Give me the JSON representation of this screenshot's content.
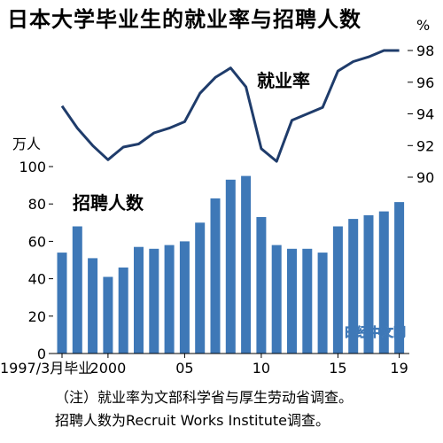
{
  "chart_data": {
    "type": "bar+line",
    "title": "日本大学毕业生的就业率与招聘人数",
    "x": [
      1997,
      1998,
      1999,
      2000,
      2001,
      2002,
      2003,
      2004,
      2005,
      2006,
      2007,
      2008,
      2009,
      2010,
      2011,
      2012,
      2013,
      2014,
      2015,
      2016,
      2017,
      2018,
      2019
    ],
    "x_tick_labels": [
      {
        "x": 1997,
        "label": "1997/3月毕业"
      },
      {
        "x": 2000,
        "label": "2000"
      },
      {
        "x": 2005,
        "label": "05"
      },
      {
        "x": 2010,
        "label": "10"
      },
      {
        "x": 2015,
        "label": "15"
      },
      {
        "x": 2019,
        "label": "19"
      }
    ],
    "series": [
      {
        "name": "招聘人数",
        "type": "bar",
        "axis": "left",
        "color": "#3e78b7",
        "values": [
          54,
          68,
          51,
          41,
          46,
          57,
          56,
          58,
          60,
          70,
          83,
          93,
          95,
          73,
          58,
          56,
          56,
          54,
          68,
          72,
          74,
          76,
          81
        ]
      },
      {
        "name": "就业率",
        "type": "line",
        "axis": "right",
        "color": "#1f3c6b",
        "values": [
          94.5,
          93.1,
          92.0,
          91.1,
          91.9,
          92.1,
          92.8,
          93.1,
          93.5,
          95.3,
          96.3,
          96.9,
          95.7,
          91.8,
          91.0,
          93.6,
          94.0,
          94.4,
          96.7,
          97.3,
          97.6,
          98.0,
          98.0
        ]
      }
    ],
    "y_left": {
      "unit": "万人",
      "ylim": [
        0,
        100
      ],
      "ticks": [
        0,
        20,
        40,
        60,
        80,
        100
      ]
    },
    "y_right": {
      "unit": "%",
      "ylim": [
        90,
        98
      ],
      "ticks": [
        90,
        92,
        94,
        96,
        98
      ]
    },
    "grid": false,
    "annotations": [
      "（注）就业率为文部科学省与厚生劳动省调查。",
      "招聘人数为Recruit Works Institute调查。"
    ],
    "watermark": "日经中文网"
  }
}
